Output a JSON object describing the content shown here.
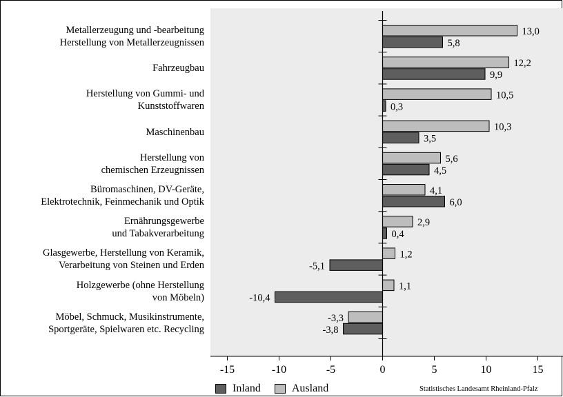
{
  "colors": {
    "inland": "#5e5e5e",
    "ausland": "#bdbdbd",
    "plot_bg": "#ececec"
  },
  "chart_data": {
    "type": "bar",
    "orientation": "horizontal",
    "categories": [
      "Metallerzeugung und -bearbeitung\nHerstellung von Metallerzeugnissen",
      "Fahrzeugbau",
      "Herstellung von Gummi- und\nKunststoffwaren",
      "Maschinenbau",
      "Herstellung von\nchemischen Erzeugnissen",
      "Büromaschinen, DV-Geräte,\nElektrotechnik, Feinmechanik und Optik",
      "Ernährungsgewerbe\nund Tabakverarbeitung",
      "Glasgewerbe, Herstellung von Keramik,\nVerarbeitung von Steinen und Erden",
      "Holzgewerbe (ohne Herstellung\nvon Möbeln)",
      "Möbel, Schmuck, Musikinstrumente,\nSportgeräte, Spielwaren etc. Recycling"
    ],
    "series": [
      {
        "name": "Ausland",
        "values": [
          13.0,
          12.2,
          10.5,
          10.3,
          5.6,
          4.1,
          2.9,
          1.2,
          1.1,
          -3.3
        ],
        "labels": [
          "13,0",
          "12,2",
          "10,5",
          "10,3",
          "5,6",
          "4,1",
          "2,9",
          "1,2",
          "1,1",
          "-3,3"
        ]
      },
      {
        "name": "Inland",
        "values": [
          5.8,
          9.9,
          0.3,
          3.5,
          4.5,
          6.0,
          0.4,
          -5.1,
          -10.4,
          -3.8
        ],
        "labels": [
          "5,8",
          "9,9",
          "0,3",
          "3,5",
          "4,5",
          "6,0",
          "0,4",
          "-5,1",
          "-10,4",
          "-3,8"
        ]
      }
    ],
    "xlim": [
      -15,
      17
    ],
    "xticks": [
      -15,
      -10,
      -5,
      0,
      5,
      10,
      15
    ],
    "grid": false
  },
  "legend": {
    "inland": "Inland",
    "ausland": "Ausland"
  },
  "source": "Statistisches Landesamt Rheinland-Pfalz"
}
